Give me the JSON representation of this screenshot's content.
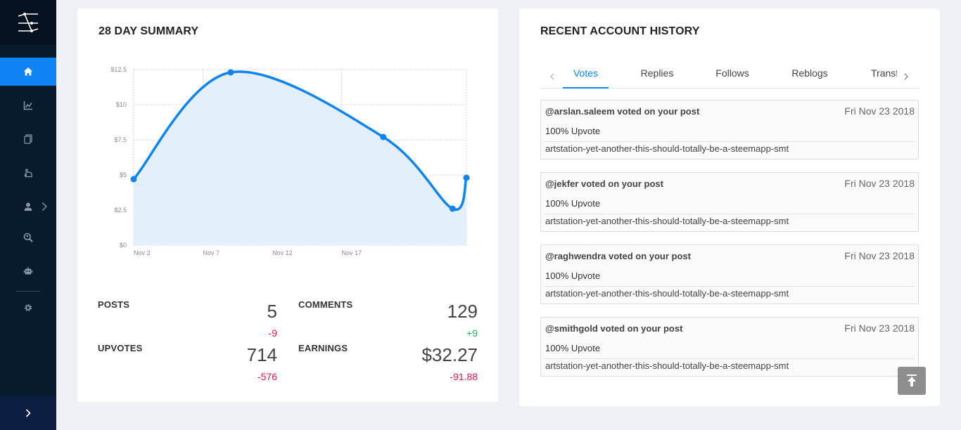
{
  "sidebar": {
    "items": [
      {
        "icon": "home-icon",
        "active": true
      },
      {
        "icon": "chart-icon"
      },
      {
        "icon": "document-icon"
      },
      {
        "icon": "hand-icon"
      },
      {
        "icon": "user-icon",
        "has_submenu": true
      },
      {
        "icon": "search-user-icon"
      },
      {
        "icon": "robot-icon"
      },
      {
        "icon": "gear-icon"
      }
    ],
    "toggle_icon": "chevron-right-icon"
  },
  "summary": {
    "title": "28 DAY SUMMARY",
    "stats": {
      "posts": {
        "label": "POSTS",
        "value": "5",
        "delta": "-9"
      },
      "comments": {
        "label": "COMMENTS",
        "value": "129",
        "delta": "+9"
      },
      "upvotes": {
        "label": "UPVOTES",
        "value": "714",
        "delta": "-576"
      },
      "earnings": {
        "label": "EARNINGS",
        "value": "$32.27",
        "delta": "-91.88"
      }
    }
  },
  "chart_data": {
    "type": "area",
    "x": [
      "Nov 2",
      "Nov 9",
      "Nov 20",
      "Nov 25",
      "Nov 26"
    ],
    "values": [
      4.7,
      12.3,
      7.7,
      2.6,
      4.8
    ],
    "xticks": [
      "Nov 2",
      "Nov 7",
      "Nov 12",
      "Nov 17"
    ],
    "yticks": [
      "$0",
      "$2.5",
      "$5",
      "$7.5",
      "$10",
      "$12.5"
    ],
    "ylim": [
      0,
      12.5
    ],
    "grid": true,
    "line_color": "#0d84f2",
    "fill_color": "#e3f0fc"
  },
  "history": {
    "title": "RECENT ACCOUNT HISTORY",
    "tabs": [
      "Votes",
      "Replies",
      "Follows",
      "Reblogs",
      "Transf"
    ],
    "active_tab": "Votes",
    "items": [
      {
        "user": "@arslan.saleem voted on your post",
        "date": "Fri Nov 23 2018",
        "type": "100% Upvote",
        "link": "artstation-yet-another-this-should-totally-be-a-steemapp-smt"
      },
      {
        "user": "@jekfer voted on your post",
        "date": "Fri Nov 23 2018",
        "type": "100% Upvote",
        "link": "artstation-yet-another-this-should-totally-be-a-steemapp-smt"
      },
      {
        "user": "@raghwendra voted on your post",
        "date": "Fri Nov 23 2018",
        "type": "100% Upvote",
        "link": "artstation-yet-another-this-should-totally-be-a-steemapp-smt"
      },
      {
        "user": "@smithgold voted on your post",
        "date": "Fri Nov 23 2018",
        "type": "100% Upvote",
        "link": "artstation-yet-another-this-should-totally-be-a-steemapp-smt"
      }
    ]
  },
  "colors": {
    "accent": "#0d84f2",
    "sidebar": "#081a2e",
    "negative": "#e2154a",
    "positive": "#22b35a"
  }
}
